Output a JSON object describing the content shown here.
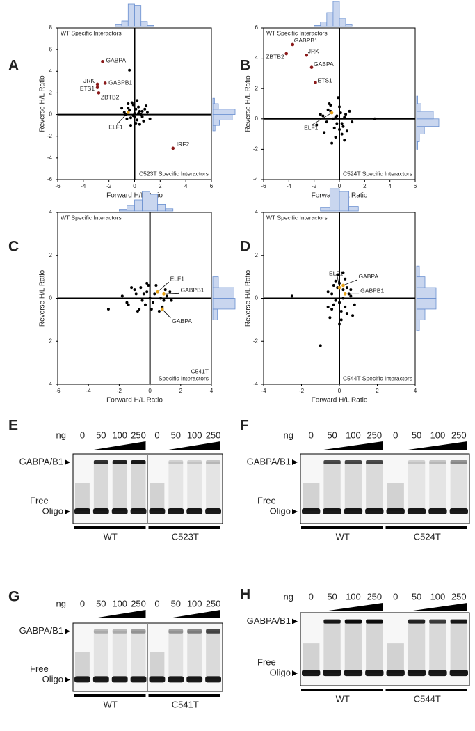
{
  "chart_data": [
    {
      "type": "scatter",
      "panel": "A",
      "xlabel": "Forward H/L Ratio",
      "ylabel": "Reverse H/L Ratio",
      "annotations": {
        "top_left": [
          "WT Specific Interactors"
        ],
        "bottom_right": [
          "C523T Specific Interactors"
        ]
      },
      "xlim": [
        -6,
        6
      ],
      "ylim": [
        -6,
        8
      ],
      "xticks": [
        -6,
        -4,
        -2,
        0,
        2,
        4,
        6
      ],
      "yticks": [
        -6,
        -4,
        -2,
        0,
        2,
        4,
        6,
        8
      ],
      "series": [
        {
          "color": "#000000",
          "x": [
            -0.8,
            -0.5,
            -0.3,
            -0.1,
            0,
            0.2,
            0.4,
            0.6,
            0.8,
            -0.6,
            -0.2,
            0.1,
            0.3,
            0.5,
            -0.4,
            0,
            0.2,
            -0.7,
            0.7,
            1.0,
            -0.3,
            0.1,
            0.4,
            -0.1,
            0.9,
            -0.5,
            0.6,
            1.2,
            -1.0,
            0.3,
            -0.4
          ],
          "values": [
            0.2,
            0.6,
            -0.3,
            0.9,
            0.1,
            -0.5,
            0.3,
            -0.2,
            0.5,
            -0.4,
            1.1,
            -0.8,
            0.7,
            0.0,
            0.4,
            -0.2,
            1.3,
            0.0,
            -0.6,
            0.2,
            -1.0,
            0.5,
            -0.9,
            -0.1,
            0.8,
            1.0,
            0.3,
            -0.4,
            0.6,
            0.1,
            4.1
          ]
        }
      ],
      "labeled_points": [
        {
          "label": "GABPA",
          "x": -2.5,
          "y": 4.9,
          "color": "#8b1a1a"
        },
        {
          "label": "GABPB1",
          "x": -2.3,
          "y": 2.9,
          "color": "#8b1a1a"
        },
        {
          "label": "JRK",
          "x": -2.9,
          "y": 2.8,
          "color": "#8b1a1a"
        },
        {
          "label": "ETS1",
          "x": -2.9,
          "y": 2.5,
          "color": "#8b1a1a"
        },
        {
          "label": "ZBTB2",
          "x": -2.8,
          "y": 2.0,
          "color": "#8b1a1a"
        },
        {
          "label": "ELF1",
          "x": -0.5,
          "y": 0.2,
          "color": "#e8a317"
        },
        {
          "label": "IRF2",
          "x": 3.0,
          "y": -3.1,
          "color": "#8b1a1a"
        }
      ],
      "xhist": {
        "bins": [
          -1.5,
          -1,
          -0.5,
          0,
          0.5,
          1,
          1.5
        ],
        "counts": [
          3,
          10,
          40,
          38,
          9,
          2
        ]
      },
      "yhist": {
        "bins": [
          -1.5,
          -1,
          -0.5,
          0,
          0.5,
          1,
          1.5
        ],
        "counts": [
          4,
          12,
          35,
          40,
          10,
          3
        ]
      }
    },
    {
      "type": "scatter",
      "panel": "B",
      "xlabel": "Forward H/L Ratio",
      "ylabel": "Reverse H/L Ratio",
      "annotations": {
        "top_left": [
          "WT Specific Interactors"
        ],
        "bottom_right": [
          "C524T Specific Interactors"
        ]
      },
      "xlim": [
        -6,
        6
      ],
      "ylim": [
        -4,
        6
      ],
      "xticks": [
        -6,
        -4,
        -2,
        0,
        2,
        4,
        6
      ],
      "yticks": [
        -4,
        -2,
        0,
        2,
        4,
        6
      ],
      "series": [
        {
          "color": "#000000",
          "x": [
            -1.5,
            -1.0,
            -0.7,
            -0.4,
            -0.2,
            0,
            0.2,
            0.4,
            0.6,
            -1.2,
            -0.8,
            -0.5,
            -0.3,
            0.1,
            0.3,
            -0.9,
            -0.1,
            0.5,
            1.0,
            -0.6,
            0.2,
            -1.8,
            0.8,
            -0.3,
            2.8,
            -1.3,
            0.0,
            -0.7,
            0.4,
            -0.2
          ],
          "values": [
            0.3,
            -0.2,
            0.5,
            -0.6,
            0.2,
            0.8,
            -0.3,
            0.1,
            -0.8,
            -0.9,
            1.0,
            0.0,
            -1.2,
            0.4,
            -0.5,
            0.6,
            1.4,
            0.3,
            -0.2,
            -1.6,
            -1.0,
            -0.4,
            0.5,
            0.1,
            0.0,
            0.2,
            -0.7,
            0.9,
            -1.4,
            -0.3
          ]
        }
      ],
      "labeled_points": [
        {
          "label": "GABPB1",
          "x": -3.7,
          "y": 4.9,
          "color": "#8b1a1a"
        },
        {
          "label": "JRK",
          "x": -2.6,
          "y": 4.2,
          "color": "#8b1a1a"
        },
        {
          "label": "ZBTB2",
          "x": -4.2,
          "y": 4.3,
          "color": "#8b1a1a"
        },
        {
          "label": "GABPA",
          "x": -2.2,
          "y": 3.4,
          "color": "#8b1a1a"
        },
        {
          "label": "ETS1",
          "x": -1.9,
          "y": 2.4,
          "color": "#8b1a1a"
        },
        {
          "label": "ELF1",
          "x": -0.6,
          "y": 0.4,
          "color": "#e8a317"
        }
      ],
      "xhist": {
        "bins": [
          -2,
          -1.5,
          -1,
          -0.5,
          0,
          0.5,
          1
        ],
        "counts": [
          2,
          8,
          25,
          45,
          14,
          3
        ]
      },
      "yhist": {
        "bins": [
          -2,
          -1.5,
          -1,
          -0.5,
          0,
          0.5,
          1,
          1.5
        ],
        "counts": [
          2,
          5,
          14,
          40,
          30,
          8,
          2
        ]
      }
    },
    {
      "type": "scatter",
      "panel": "C",
      "xlabel": "Forward H/L Ratio",
      "ylabel": "Reverse H/L Ratio",
      "annotations": {
        "top_left": [
          "WT Specific Interactors"
        ],
        "bottom_right": [
          "C541T",
          "Specific Interactors"
        ]
      },
      "xlim": [
        -6,
        4
      ],
      "ylim": [
        -4,
        4
      ],
      "xticks": [
        -6,
        -4,
        -2,
        0,
        2,
        4
      ],
      "yticks": [
        {
          "value": -4,
          "label": "4"
        },
        {
          "value": -2,
          "label": "2"
        },
        0,
        2,
        4
      ],
      "series": [
        {
          "color": "#000000",
          "x": [
            -1.8,
            -1.4,
            -1.0,
            -0.7,
            -0.4,
            -0.1,
            0.2,
            0.5,
            0.8,
            1.1,
            1.4,
            -1.2,
            -0.8,
            -0.5,
            -0.2,
            0.1,
            0.4,
            0.7,
            1.0,
            -0.9,
            -0.3,
            0.3,
            0.6,
            -0.6,
            0.0,
            -2.7,
            1.3,
            -1.5,
            0.9,
            -0.2
          ],
          "values": [
            0.1,
            -0.3,
            0.4,
            -0.5,
            0.2,
            0.6,
            -0.2,
            0.3,
            -0.4,
            0.1,
            -0.1,
            0.5,
            -0.6,
            -0.1,
            0.3,
            -0.5,
            0.6,
            0.0,
            0.4,
            0.2,
            -0.3,
            0.2,
            -0.6,
            0.5,
            0.0,
            -0.5,
            0.3,
            -0.2,
            -0.1,
            0.7
          ]
        }
      ],
      "labeled_points": [
        {
          "label": "ELF1",
          "x": 0.5,
          "y": 0.3,
          "color": "#e8a317"
        },
        {
          "label": "GABPB1",
          "x": 0.9,
          "y": 0.2,
          "color": "#e8a317"
        },
        {
          "label": "GABPA",
          "x": 0.8,
          "y": -0.5,
          "color": "#e8a317"
        }
      ],
      "xhist": {
        "bins": [
          -2,
          -1.5,
          -1,
          -0.5,
          0,
          0.5,
          1,
          1.5
        ],
        "counts": [
          3,
          10,
          20,
          35,
          30,
          12,
          4
        ]
      },
      "yhist": {
        "bins": [
          -1,
          -0.5,
          0,
          0.5,
          1
        ],
        "counts": [
          8,
          40,
          38,
          10
        ]
      }
    },
    {
      "type": "scatter",
      "panel": "D",
      "xlabel": "Forward H/L Ratio",
      "ylabel": "Reverse H/L Ratio",
      "annotations": {
        "top_left": [
          "WT Specific Interactors"
        ],
        "bottom_right": [
          "C544T Specific Interactors"
        ]
      },
      "xlim": [
        -4,
        4
      ],
      "ylim": [
        -4,
        4
      ],
      "xticks": [
        -4,
        -2,
        0,
        2,
        4
      ],
      "yticks": [
        -4,
        -2,
        0,
        2,
        4
      ],
      "series": [
        {
          "color": "#000000",
          "x": [
            -0.6,
            -0.4,
            -0.2,
            0,
            0.2,
            0.4,
            0.6,
            0.8,
            -0.5,
            -0.3,
            -0.1,
            0.1,
            0.3,
            0.5,
            -0.2,
            0.0,
            0.2,
            0.4,
            -0.4,
            0.1,
            -0.3,
            0.3,
            0.6,
            -0.1,
            0.0,
            -1.0,
            -2.5,
            0.7,
            -0.6,
            0.2
          ],
          "values": [
            0.3,
            -0.5,
            0.8,
            -0.2,
            0.4,
            -0.7,
            0.1,
            -0.3,
            -0.9,
            0.6,
            1.1,
            -1.0,
            0.9,
            0.2,
            -0.1,
            -1.2,
            0.0,
            0.5,
            0.2,
            -0.6,
            -0.3,
            -0.4,
            0.4,
            0.5,
            0.7,
            -2.2,
            0.1,
            -0.8,
            -0.4,
            1.2
          ]
        }
      ],
      "labeled_points": [
        {
          "label": "ELF1",
          "x": 0.0,
          "y": 0.5,
          "color": "#e8a317"
        },
        {
          "label": "GABPA",
          "x": 0.2,
          "y": 0.6,
          "color": "#e8a317"
        },
        {
          "label": "GABPB1",
          "x": 0.3,
          "y": 0.2,
          "color": "#e8a317"
        }
      ],
      "xhist": {
        "bins": [
          -1,
          -0.5,
          0,
          0.5,
          1
        ],
        "counts": [
          6,
          40,
          35,
          8
        ]
      },
      "yhist": {
        "bins": [
          -1.5,
          -1,
          -0.5,
          0,
          0.5,
          1,
          1.5
        ],
        "counts": [
          5,
          15,
          35,
          35,
          15,
          5
        ]
      }
    }
  ],
  "gels": [
    {
      "panel": "E",
      "unit": "ng",
      "doses": [
        0,
        50,
        100,
        250,
        0,
        50,
        100,
        250
      ],
      "bands": [
        "GABPA/B1",
        "Free",
        "Oligo"
      ],
      "groups": [
        "WT",
        "C523T"
      ]
    },
    {
      "panel": "F",
      "unit": "ng",
      "doses": [
        0,
        50,
        100,
        250,
        0,
        50,
        100,
        250
      ],
      "bands": [
        "GABPA/B1",
        "Free",
        "Oligo"
      ],
      "groups": [
        "WT",
        "C524T"
      ]
    },
    {
      "panel": "G",
      "unit": "ng",
      "doses": [
        0,
        50,
        100,
        250,
        0,
        50,
        100,
        250
      ],
      "bands": [
        "GABPA/B1",
        "Free",
        "Oligo"
      ],
      "groups": [
        "WT",
        "C541T"
      ]
    },
    {
      "panel": "H",
      "unit": "ng",
      "doses": [
        0,
        50,
        100,
        250,
        0,
        50,
        100,
        250
      ],
      "bands": [
        "GABPA/B1",
        "Free",
        "Oligo"
      ],
      "groups": [
        "WT",
        "C544T"
      ]
    }
  ]
}
